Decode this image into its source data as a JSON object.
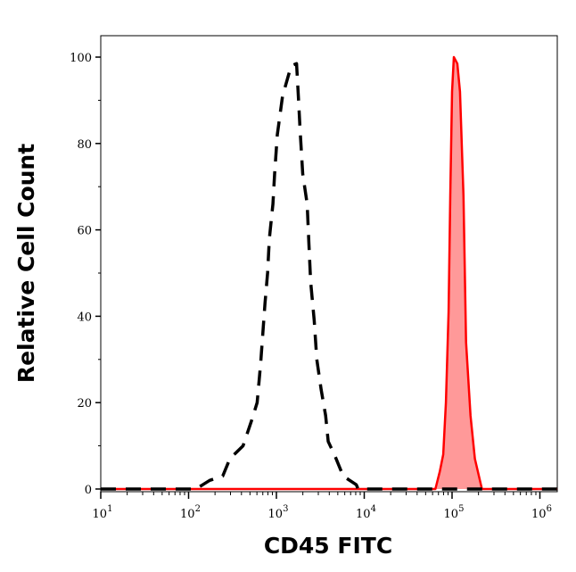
{
  "chart_data": {
    "type": "area",
    "title": "",
    "xlabel": "CD45 FITC",
    "ylabel": "Relative Cell Count",
    "xscale": "log",
    "xlim": [
      10,
      1600000
    ],
    "ylim": [
      0,
      104
    ],
    "x_ticks": [
      {
        "base": "10",
        "exp": "1"
      },
      {
        "base": "10",
        "exp": "2"
      },
      {
        "base": "10",
        "exp": "3"
      },
      {
        "base": "10",
        "exp": "4"
      },
      {
        "base": "10",
        "exp": "5"
      },
      {
        "base": "10",
        "exp": "6"
      }
    ],
    "y_ticks": [
      "0",
      "20",
      "40",
      "60",
      "80",
      "100"
    ],
    "grid": false,
    "legend": "none",
    "series": [
      {
        "style": "dashed",
        "color": "#000000",
        "fill": "none",
        "x": [
          10,
          120,
          145,
          174,
          245,
          295,
          417,
          525,
          603,
          661,
          741,
          794,
          832,
          912,
          955,
          1023,
          1175,
          1380,
          1479,
          1698,
          1778,
          1862,
          1995,
          2239,
          2344,
          2455,
          2692,
          2884,
          3236,
          3631,
          3890,
          4571,
          5754,
          8128,
          8511,
          1600000
        ],
        "y": [
          0,
          0,
          1,
          2,
          3,
          7,
          10,
          16,
          20,
          29,
          43,
          50,
          58,
          66,
          73,
          82,
          91,
          96,
          98,
          98.5,
          91,
          83,
          73,
          66,
          57,
          48,
          39,
          30,
          23,
          17,
          11,
          8,
          3,
          1,
          0,
          0
        ]
      },
      {
        "style": "solid",
        "color": "#ff0000",
        "fill": "#ff9999",
        "x": [
          10,
          64600,
          72400,
          79400,
          85100,
          91200,
          95500,
          100000,
          104700,
          114800,
          123000,
          134900,
          144500,
          162200,
          182000,
          218800,
          1600000
        ],
        "y": [
          0,
          0,
          4,
          8,
          20,
          41,
          68,
          92,
          100,
          98.5,
          92,
          68,
          34,
          17,
          7,
          0,
          0
        ]
      }
    ]
  }
}
